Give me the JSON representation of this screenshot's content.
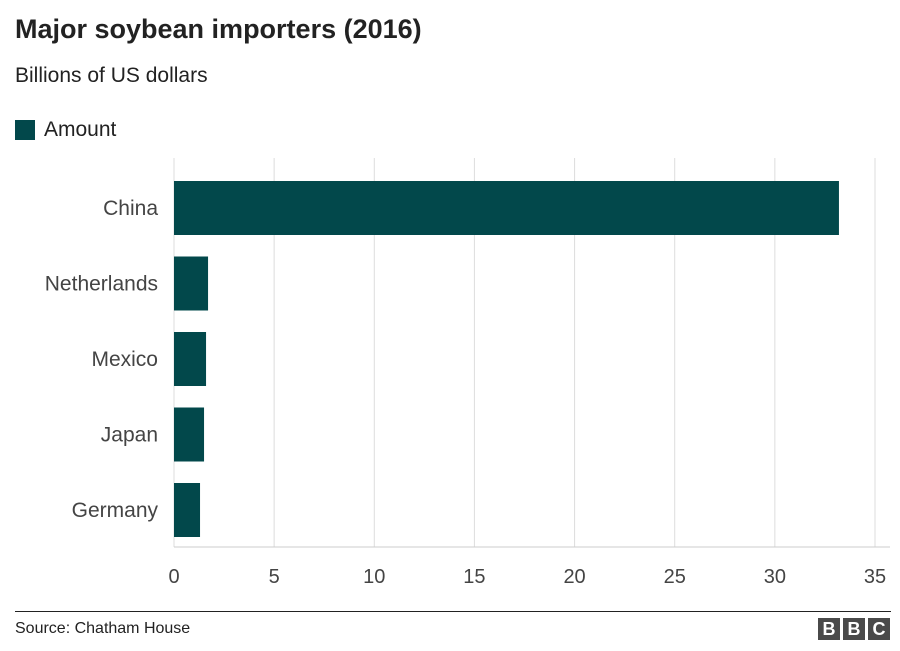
{
  "chart_data": {
    "type": "bar",
    "orientation": "horizontal",
    "title": "Major soybean importers (2016)",
    "subtitle": "Billions of US dollars",
    "categories": [
      "China",
      "Netherlands",
      "Mexico",
      "Japan",
      "Germany"
    ],
    "series": [
      {
        "name": "Amount",
        "values": [
          33.2,
          1.7,
          1.6,
          1.5,
          1.3
        ],
        "color": "#02484b"
      }
    ],
    "xlim": [
      0,
      35
    ],
    "xticks": [
      0,
      5,
      10,
      15,
      20,
      25,
      30,
      35
    ],
    "grid": true,
    "legend_position": "top-left"
  },
  "footer": {
    "source": "Source: Chatham House",
    "logo": [
      "B",
      "B",
      "C"
    ]
  }
}
